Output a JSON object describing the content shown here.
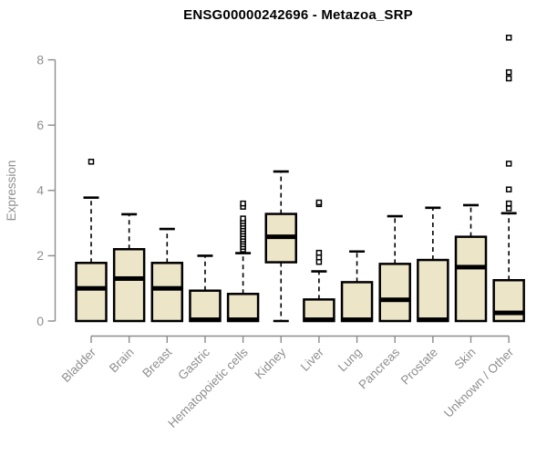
{
  "chart_data": {
    "type": "boxplot",
    "title": "ENSG00000242696 - Metazoa_SRP",
    "xlabel": "",
    "ylabel": "Expression",
    "ylim": [
      0,
      8.8
    ],
    "yticks": [
      0,
      2,
      4,
      6,
      8
    ],
    "grid": false,
    "legend": "none",
    "categories": [
      "Bladder",
      "Brain",
      "Breast",
      "Gastric",
      "Hematopoietic cells",
      "Kidney",
      "Liver",
      "Lung",
      "Pancreas",
      "Prostate",
      "Skin",
      "Unknown / Other"
    ],
    "series": [
      {
        "name": "Bladder",
        "low": 0,
        "q1": 0,
        "median": 1.0,
        "q3": 1.78,
        "high": 3.78,
        "outliers": [
          4.88
        ]
      },
      {
        "name": "Brain",
        "low": 0,
        "q1": 0,
        "median": 1.3,
        "q3": 2.2,
        "high": 3.27,
        "outliers": []
      },
      {
        "name": "Breast",
        "low": 0,
        "q1": 0,
        "median": 1.0,
        "q3": 1.78,
        "high": 2.82,
        "outliers": []
      },
      {
        "name": "Gastric",
        "low": 0,
        "q1": 0,
        "median": 0.04,
        "q3": 0.93,
        "high": 2.0,
        "outliers": []
      },
      {
        "name": "Hematopoietic cells",
        "low": 0,
        "q1": 0,
        "median": 0.04,
        "q3": 0.83,
        "high": 2.08,
        "outliers": [
          2.19,
          2.27,
          2.35,
          2.43,
          2.5,
          2.58,
          2.66,
          2.74,
          2.82,
          2.9,
          2.98,
          3.06,
          3.14,
          3.5,
          3.6
        ]
      },
      {
        "name": "Kidney",
        "low": 0,
        "q1": 1.8,
        "median": 2.58,
        "q3": 3.28,
        "high": 4.58,
        "outliers": []
      },
      {
        "name": "Liver",
        "low": 0,
        "q1": 0,
        "median": 0.04,
        "q3": 0.66,
        "high": 1.52,
        "outliers": [
          1.81,
          1.95,
          2.09,
          3.58,
          3.63
        ]
      },
      {
        "name": "Lung",
        "low": 0,
        "q1": 0,
        "median": 0.04,
        "q3": 1.19,
        "high": 2.13,
        "outliers": []
      },
      {
        "name": "Pancreas",
        "low": 0,
        "q1": 0,
        "median": 0.65,
        "q3": 1.75,
        "high": 3.21,
        "outliers": []
      },
      {
        "name": "Prostate",
        "low": 0,
        "q1": 0,
        "median": 0.04,
        "q3": 1.87,
        "high": 3.47,
        "outliers": []
      },
      {
        "name": "Skin",
        "low": 0,
        "q1": 0,
        "median": 1.65,
        "q3": 2.58,
        "high": 3.55,
        "outliers": []
      },
      {
        "name": "Unknown / Other",
        "low": 0,
        "q1": 0,
        "median": 0.25,
        "q3": 1.25,
        "high": 3.3,
        "outliers": [
          3.45,
          3.6,
          4.03,
          4.82,
          7.43,
          7.62,
          8.68
        ]
      }
    ],
    "colors": {
      "background": "#ffffff",
      "box_fill": "#ece5c8",
      "box_stroke": "#000000",
      "median": "#000000",
      "whisker": "#000000",
      "outlier": "#000000",
      "axis": "#8c8c8c",
      "tick_label": "#8f8f8f",
      "title": "#000000"
    }
  }
}
